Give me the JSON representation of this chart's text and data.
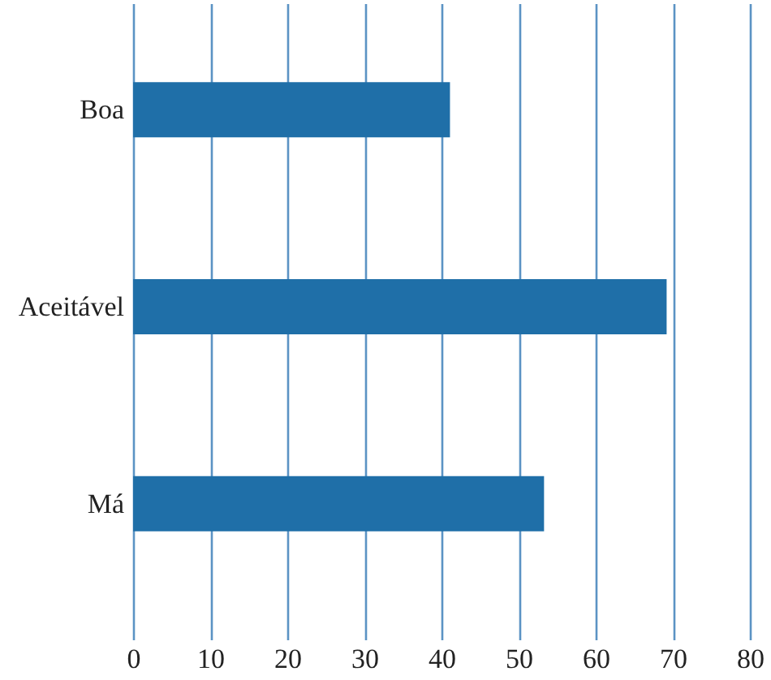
{
  "chart_data": {
    "type": "bar",
    "orientation": "horizontal",
    "categories": [
      "Boa",
      "Aceitável",
      "Má"
    ],
    "values": [
      41.1,
      69.2,
      53.3
    ],
    "color": "#1f6fa8",
    "xlim": [
      0,
      80
    ],
    "xticks": [
      0,
      10,
      20,
      30,
      40,
      50,
      60,
      70,
      80
    ],
    "grid": "x"
  }
}
